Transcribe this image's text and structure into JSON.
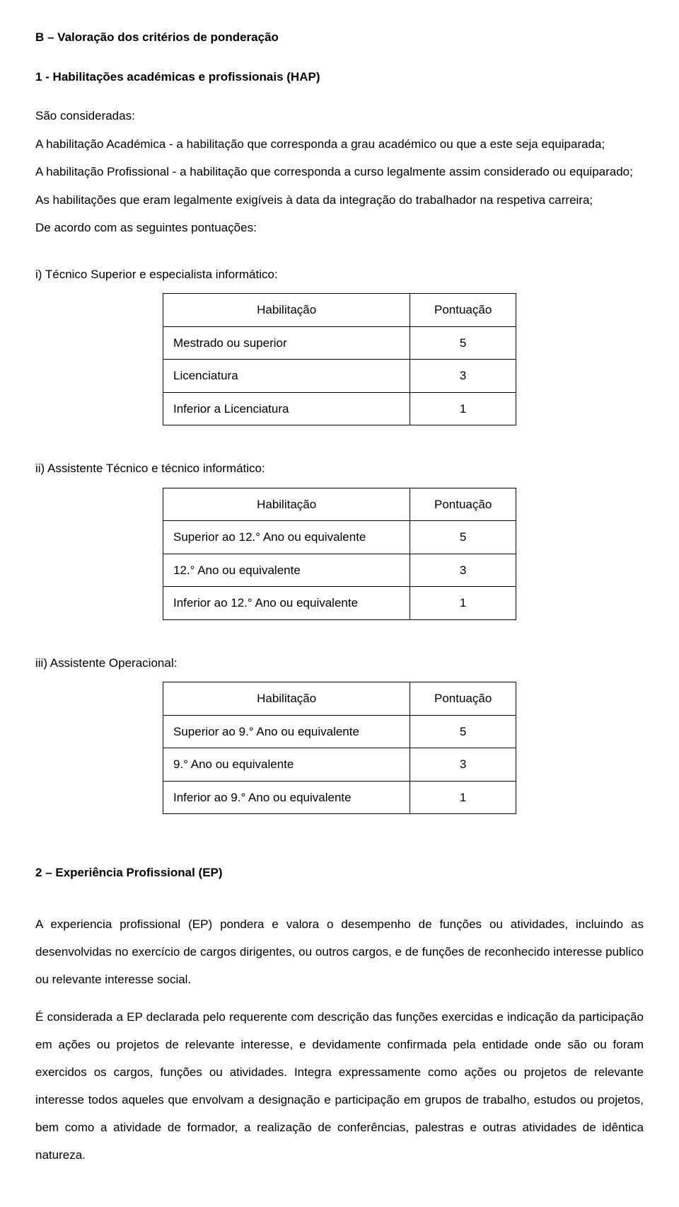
{
  "headingB": "B – Valoração dos critérios de ponderação",
  "heading1": "1 - Habilitações académicas e profissionais (HAP)",
  "intro": "São consideradas:",
  "p1": "A habilitação Académica - a habilitação que corresponda a grau académico ou que a este seja equiparada;",
  "p2": "A habilitação Profissional - a habilitação que corresponda a curso legalmente assim considerado ou equiparado;",
  "p3": "As habilitações que eram legalmente exigíveis à data da integração do trabalhador na respetiva carreira;",
  "p4": "De acordo com as seguintes pontuações:",
  "tableHeaders": {
    "hab": "Habilitação",
    "pon": "Pontuação"
  },
  "group_i": {
    "label": "i) Técnico Superior e especialista informático:",
    "rows": [
      {
        "hab": "Mestrado ou superior",
        "pon": "5"
      },
      {
        "hab": "Licenciatura",
        "pon": "3"
      },
      {
        "hab": "Inferior a Licenciatura",
        "pon": "1"
      }
    ]
  },
  "group_ii": {
    "label": "ii) Assistente Técnico e técnico informático:",
    "rows": [
      {
        "hab": "Superior ao 12.° Ano ou equivalente",
        "pon": "5"
      },
      {
        "hab": "12.° Ano ou equivalente",
        "pon": "3"
      },
      {
        "hab": "Inferior ao 12.° Ano ou equivalente",
        "pon": "1"
      }
    ]
  },
  "group_iii": {
    "label": "iii) Assistente Operacional:",
    "rows": [
      {
        "hab": "Superior ao 9.° Ano ou equivalente",
        "pon": "5"
      },
      {
        "hab": "9.° Ano ou equivalente",
        "pon": "3"
      },
      {
        "hab": "Inferior ao 9.° Ano ou equivalente",
        "pon": "1"
      }
    ]
  },
  "heading2": "2 – Experiência Profissional (EP)",
  "ep_p1": "A experiencia profissional (EP) pondera e valora o desempenho de funções ou atividades, incluindo as desenvolvidas no exercício de cargos dirigentes, ou outros cargos, e de funções de reconhecido interesse publico ou relevante interesse social.",
  "ep_p2": "É considerada a EP declarada pelo requerente com descrição das funções exercidas e indicação da participação em ações ou projetos de relevante interesse, e devidamente confirmada pela entidade onde são ou foram exercidos os cargos, funções ou atividades. Integra expressamente como ações ou projetos de relevante interesse todos aqueles que envolvam a designação e participação em grupos de trabalho, estudos ou projetos, bem como a atividade de formador, a realização de conferências, palestras e outras atividades de idêntica natureza."
}
